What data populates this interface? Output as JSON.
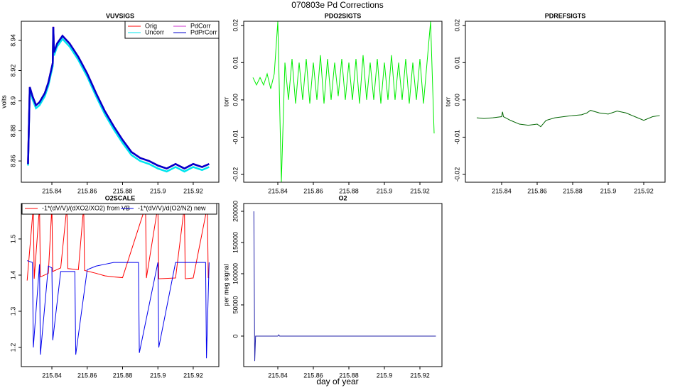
{
  "title": "070803e   Pd Corrections",
  "xlabel": "day of year",
  "chart_data": [
    {
      "type": "line",
      "title": "VUVSIGS",
      "ylabel": "volts",
      "xlim": [
        215.8227,
        215.9345
      ],
      "ylim": [
        8.8459,
        8.9527
      ],
      "xticks": [
        215.84,
        215.86,
        215.88,
        215.9,
        215.92
      ],
      "yticks": [
        8.86,
        8.88,
        8.9,
        8.92,
        8.94
      ],
      "legend": "topright",
      "legend_ncol": 2,
      "series": [
        {
          "name": "Orig",
          "color": "#ff0000",
          "x": [
            215.8265,
            215.8275,
            215.829,
            215.831,
            215.833,
            215.836,
            215.838,
            215.8405,
            215.8408,
            215.8412,
            215.843,
            215.846,
            215.85,
            215.855,
            215.86,
            215.865,
            215.87,
            215.875,
            215.88,
            215.885,
            215.89,
            215.895,
            215.9,
            215.905,
            215.91,
            215.915,
            215.92,
            215.925,
            215.929
          ],
          "values": [
            8.858,
            8.909,
            8.903,
            8.897,
            8.899,
            8.905,
            8.912,
            8.925,
            8.949,
            8.932,
            8.938,
            8.943,
            8.938,
            8.929,
            8.918,
            8.905,
            8.893,
            8.883,
            8.874,
            8.866,
            8.862,
            8.86,
            8.857,
            8.855,
            8.858,
            8.855,
            8.858,
            8.856,
            8.858
          ]
        },
        {
          "name": "Uncorr",
          "color": "#00e5ee",
          "x": [
            215.8265,
            215.8275,
            215.829,
            215.831,
            215.833,
            215.836,
            215.838,
            215.8405,
            215.8408,
            215.8412,
            215.843,
            215.846,
            215.85,
            215.855,
            215.86,
            215.865,
            215.87,
            215.875,
            215.88,
            215.885,
            215.89,
            215.895,
            215.9,
            215.905,
            215.91,
            215.915,
            215.92,
            215.925,
            215.929
          ],
          "values": [
            8.857,
            8.907,
            8.901,
            8.895,
            8.897,
            8.903,
            8.91,
            8.923,
            8.947,
            8.93,
            8.936,
            8.941,
            8.936,
            8.927,
            8.916,
            8.903,
            8.891,
            8.881,
            8.872,
            8.864,
            8.86,
            8.858,
            8.855,
            8.853,
            8.856,
            8.853,
            8.856,
            8.854,
            8.856
          ]
        },
        {
          "name": "PdCorr",
          "color": "#cc33cc",
          "x": [
            215.8265,
            215.8275,
            215.829,
            215.831,
            215.833,
            215.836,
            215.838,
            215.8405,
            215.8408,
            215.8412,
            215.843,
            215.846,
            215.85,
            215.855,
            215.86,
            215.865,
            215.87,
            215.875,
            215.88,
            215.885,
            215.89,
            215.895,
            215.9,
            215.905,
            215.91,
            215.915,
            215.92,
            215.925,
            215.929
          ],
          "values": [
            8.858,
            8.909,
            8.903,
            8.897,
            8.899,
            8.905,
            8.912,
            8.925,
            8.949,
            8.932,
            8.938,
            8.943,
            8.938,
            8.929,
            8.918,
            8.905,
            8.893,
            8.883,
            8.874,
            8.866,
            8.862,
            8.86,
            8.857,
            8.855,
            8.858,
            8.855,
            8.858,
            8.856,
            8.858
          ]
        },
        {
          "name": "PdPrCorr",
          "color": "#0000cd",
          "x": [
            215.8265,
            215.8275,
            215.829,
            215.831,
            215.833,
            215.836,
            215.838,
            215.8405,
            215.8408,
            215.8412,
            215.843,
            215.846,
            215.85,
            215.855,
            215.86,
            215.865,
            215.87,
            215.875,
            215.88,
            215.885,
            215.89,
            215.895,
            215.9,
            215.905,
            215.91,
            215.915,
            215.92,
            215.925,
            215.929
          ],
          "values": [
            8.858,
            8.909,
            8.903,
            8.897,
            8.899,
            8.905,
            8.912,
            8.925,
            8.949,
            8.932,
            8.938,
            8.943,
            8.938,
            8.929,
            8.918,
            8.905,
            8.893,
            8.883,
            8.874,
            8.866,
            8.862,
            8.86,
            8.857,
            8.855,
            8.858,
            8.855,
            8.858,
            8.856,
            8.858
          ]
        }
      ]
    },
    {
      "type": "line",
      "title": "PDO2SIGTS",
      "ylabel": "torr",
      "xlim": [
        215.8208,
        215.9324
      ],
      "ylim": [
        -0.0221,
        0.0211
      ],
      "xticks": [
        215.84,
        215.86,
        215.88,
        215.9,
        215.92
      ],
      "yticks": [
        -0.02,
        -0.01,
        {
          "value": 0,
          "label": "0.00"
        },
        0.01,
        0.02
      ],
      "series": [
        {
          "color": "#00ee00",
          "x": [
            215.826,
            215.828,
            215.83,
            215.832,
            215.834,
            215.836,
            215.838,
            215.84,
            215.842,
            215.844,
            215.846,
            215.848,
            215.85,
            215.852,
            215.854,
            215.856,
            215.858,
            215.86,
            215.862,
            215.864,
            215.866,
            215.868,
            215.87,
            215.872,
            215.874,
            215.876,
            215.878,
            215.88,
            215.882,
            215.884,
            215.886,
            215.888,
            215.89,
            215.892,
            215.894,
            215.896,
            215.898,
            215.9,
            215.902,
            215.904,
            215.906,
            215.908,
            215.91,
            215.912,
            215.914,
            215.916,
            215.918,
            215.92,
            215.922,
            215.924,
            215.926,
            215.928
          ],
          "values": [
            0.006,
            0.004,
            0.006,
            0.004,
            0.007,
            0.003,
            0.007,
            0.021,
            -0.022,
            0.01,
            0,
            0.011,
            -0.001,
            0.01,
            0,
            0.011,
            -0.001,
            0.01,
            0,
            0.012,
            -0.001,
            0.011,
            0,
            0.01,
            0.001,
            0.011,
            0,
            0.01,
            0,
            0.011,
            -0.001,
            0.012,
            0,
            0.01,
            0,
            0.011,
            -0.001,
            0.01,
            0,
            0.012,
            0,
            0.01,
            0,
            0.011,
            -0.001,
            0.01,
            0,
            0.011,
            -0.001,
            0.01,
            0.021,
            -0.009
          ]
        }
      ]
    },
    {
      "type": "line",
      "title": "PDREFSIGTS",
      "ylabel": "torr",
      "xlim": [
        215.8196,
        215.932
      ],
      "ylim": [
        -0.0221,
        0.0211
      ],
      "xticks": [
        215.84,
        215.86,
        215.88,
        215.9,
        215.92
      ],
      "yticks": [
        -0.02,
        -0.01,
        {
          "value": 0,
          "label": "0.00"
        },
        0.01,
        0.02
      ],
      "series": [
        {
          "color": "#006400",
          "x": [
            215.826,
            215.83,
            215.835,
            215.84,
            215.8405,
            215.841,
            215.845,
            215.85,
            215.855,
            215.86,
            215.862,
            215.865,
            215.87,
            215.875,
            215.88,
            215.885,
            215.888,
            215.89,
            215.895,
            215.9,
            215.905,
            215.91,
            215.915,
            215.92,
            215.925,
            215.929
          ],
          "values": [
            -0.0048,
            -0.005,
            -0.0048,
            -0.0045,
            -0.0032,
            -0.0045,
            -0.0055,
            -0.0065,
            -0.0068,
            -0.0065,
            -0.0072,
            -0.0055,
            -0.0048,
            -0.0045,
            -0.0042,
            -0.004,
            -0.0035,
            -0.0028,
            -0.0035,
            -0.0038,
            -0.003,
            -0.0035,
            -0.0045,
            -0.0055,
            -0.0045,
            -0.0042
          ]
        }
      ]
    },
    {
      "type": "line",
      "title": "O2SCALE",
      "xlim": [
        215.8227,
        215.9345
      ],
      "ylim": [
        1.147,
        1.598
      ],
      "xticks": [
        215.84,
        215.86,
        215.88,
        215.9,
        215.92
      ],
      "yticks": [
        1.2,
        1.3,
        1.4,
        1.5
      ],
      "legend": "top",
      "legend_ncol": 2,
      "series": [
        {
          "name": "-1*(dV/V)/(dXO2/XO2) from VB",
          "color": "#ff0000",
          "x": [
            215.826,
            215.8295,
            215.83,
            215.833,
            215.8335,
            215.838,
            215.84,
            215.8405,
            215.845,
            215.8485,
            215.849,
            215.855,
            215.858,
            215.8585,
            215.865,
            215.87,
            215.875,
            215.88,
            215.893,
            215.8935,
            215.9,
            215.9005,
            215.91,
            215.915,
            215.9155,
            215.92,
            215.928,
            215.9285,
            215.929
          ],
          "values": [
            1.385,
            1.59,
            1.39,
            1.59,
            1.395,
            1.405,
            1.59,
            1.41,
            1.42,
            1.59,
            1.418,
            1.415,
            1.59,
            1.413,
            1.405,
            1.398,
            1.395,
            1.393,
            1.59,
            1.392,
            1.59,
            1.39,
            1.392,
            1.59,
            1.39,
            1.392,
            1.59,
            1.393,
            1.392
          ]
        },
        {
          "name": "-1*(dV/V)/d(O2/N2) new",
          "color": "#0000ee",
          "x": [
            215.826,
            215.829,
            215.8295,
            215.833,
            215.8335,
            215.838,
            215.84,
            215.8405,
            215.845,
            215.853,
            215.8535,
            215.86,
            215.865,
            215.87,
            215.875,
            215.88,
            215.889,
            215.8895,
            215.9,
            215.9005,
            215.91,
            215.92,
            215.927,
            215.9275,
            215.929
          ],
          "values": [
            1.44,
            1.435,
            1.2,
            1.43,
            1.18,
            1.425,
            1.42,
            1.22,
            1.41,
            1.41,
            1.18,
            1.415,
            1.425,
            1.43,
            1.435,
            1.435,
            1.435,
            1.185,
            1.435,
            1.2,
            1.435,
            1.435,
            1.435,
            1.17,
            1.435
          ]
        }
      ]
    },
    {
      "type": "line",
      "title": "O2",
      "ylabel": "per meg signal",
      "xlim": [
        215.8208,
        215.9324
      ],
      "ylim": [
        -48900,
        212500
      ],
      "xticks": [
        215.84,
        215.86,
        215.88,
        215.9,
        215.92
      ],
      "yticks": [
        0,
        50000,
        100000,
        150000,
        200000
      ],
      "series": [
        {
          "color": "#2222aa",
          "x": [
            215.8265,
            215.827,
            215.8275,
            215.84,
            215.8405,
            215.841,
            215.929
          ],
          "values": [
            200000,
            -40000,
            0,
            0,
            2000,
            0,
            0
          ]
        }
      ]
    }
  ]
}
